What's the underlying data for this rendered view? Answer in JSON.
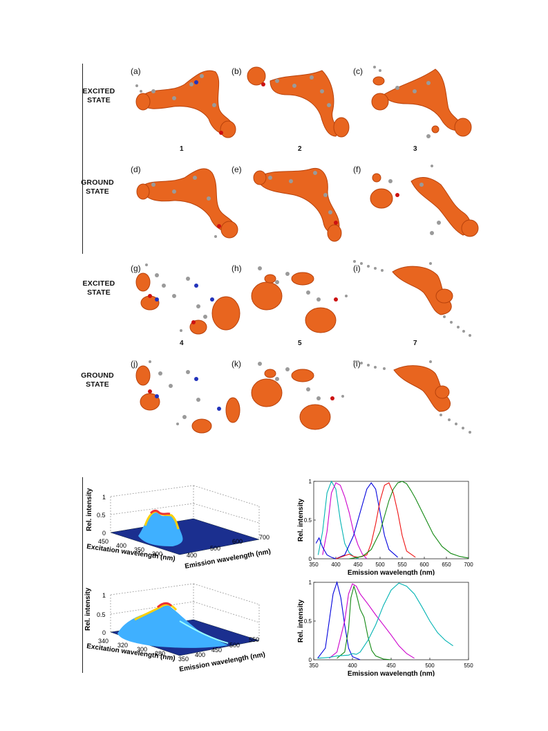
{
  "states": {
    "excited": "EXCITED STATE",
    "excited_l1": "EXCITED",
    "excited_l2": "STATE",
    "ground_l1": "GROUND",
    "ground_l2": "STATE"
  },
  "panel_letters": [
    "(a)",
    "(b)",
    "(c)",
    "(d)",
    "(e)",
    "(f)",
    "(g)",
    "(h)",
    "(i)",
    "(j)",
    "(k)",
    "(l)"
  ],
  "compound_numbers_top": [
    "1",
    "2",
    "3"
  ],
  "compound_numbers_bottom": [
    "4",
    "5",
    "7"
  ],
  "colors": {
    "isosurface": "#e8651f",
    "atom": "#9a9a9a",
    "nitrogen": "#2233bb",
    "oxygen": "#cc1111"
  },
  "plots3d": [
    {
      "zlabel": "Rel. intensity",
      "zticks": [
        "0",
        "0.5",
        "1"
      ],
      "excitation_label": "Excitation wavelength (nm)",
      "excitation_ticks": [
        "450",
        "400",
        "350",
        "300"
      ],
      "emission_label": "Emission wavelength (nm)",
      "emission_ticks": [
        "400",
        "500",
        "600",
        "700"
      ]
    },
    {
      "zlabel": "Rel. intensity",
      "zticks": [
        "0",
        "0.5",
        "1"
      ],
      "excitation_label": "Excitation wavelength (nm)",
      "excitation_ticks": [
        "340",
        "320",
        "300",
        "280"
      ],
      "emission_label": "Emission wavelength (nm)",
      "emission_ticks": [
        "350",
        "400",
        "450",
        "500",
        "550"
      ]
    }
  ],
  "chart_data": [
    {
      "type": "line",
      "xlabel": "Emission wavelength (nm)",
      "ylabel": "Rel. intensity",
      "xlim": [
        350,
        700
      ],
      "ylim": [
        0,
        1
      ],
      "xticks": [
        350,
        400,
        450,
        500,
        550,
        600,
        650,
        700
      ],
      "yticks": [
        0,
        0.5,
        1
      ],
      "series": [
        {
          "color": "#00b3b3",
          "x": [
            360,
            370,
            380,
            390,
            400,
            410,
            420,
            430,
            440,
            450
          ],
          "y": [
            0.05,
            0.35,
            0.85,
            1.0,
            0.9,
            0.5,
            0.2,
            0.08,
            0.03,
            0.0
          ]
        },
        {
          "color": "#cc00cc",
          "x": [
            370,
            380,
            390,
            400,
            410,
            420,
            430,
            440,
            450,
            460,
            470
          ],
          "y": [
            0.05,
            0.35,
            0.85,
            0.98,
            0.95,
            0.8,
            0.6,
            0.35,
            0.18,
            0.06,
            0.0
          ]
        },
        {
          "color": "#0000dd",
          "x": [
            355,
            362,
            370,
            380,
            390,
            400,
            420,
            440,
            460,
            470,
            480,
            490,
            500,
            510,
            520,
            540
          ],
          "y": [
            0.2,
            0.27,
            0.15,
            0.05,
            0.02,
            0.0,
            0.05,
            0.3,
            0.7,
            0.9,
            0.98,
            0.9,
            0.6,
            0.3,
            0.12,
            0.02
          ]
        },
        {
          "color": "#ee1111",
          "x": [
            400,
            410,
            420,
            430,
            440,
            450,
            470,
            480,
            490,
            500,
            510,
            520,
            530,
            540,
            550,
            560,
            580
          ],
          "y": [
            0.0,
            0.02,
            0.04,
            0.06,
            0.03,
            0.02,
            0.05,
            0.2,
            0.45,
            0.75,
            0.95,
            0.98,
            0.85,
            0.6,
            0.3,
            0.1,
            0.02
          ]
        },
        {
          "color": "#118811",
          "x": [
            430,
            460,
            480,
            500,
            510,
            520,
            530,
            540,
            550,
            560,
            570,
            580,
            600,
            620,
            640,
            660,
            680,
            700
          ],
          "y": [
            0.0,
            0.03,
            0.12,
            0.35,
            0.55,
            0.75,
            0.9,
            0.98,
            1.0,
            0.97,
            0.88,
            0.78,
            0.55,
            0.32,
            0.16,
            0.07,
            0.03,
            0.01
          ]
        }
      ]
    },
    {
      "type": "line",
      "xlabel": "Emission wavelength (nm)",
      "ylabel": "Rel. intensity",
      "xlim": [
        350,
        550
      ],
      "ylim": [
        0,
        1
      ],
      "xticks": [
        350,
        400,
        450,
        500,
        550
      ],
      "yticks": [
        0,
        0.5,
        1
      ],
      "series": [
        {
          "color": "#0000dd",
          "x": [
            355,
            365,
            370,
            375,
            380,
            385,
            390,
            395,
            400,
            410
          ],
          "y": [
            0.02,
            0.15,
            0.5,
            0.85,
            1.0,
            0.8,
            0.45,
            0.15,
            0.04,
            0.0
          ]
        },
        {
          "color": "#118811",
          "x": [
            380,
            390,
            395,
            398,
            402,
            405,
            410,
            415,
            420,
            425,
            430,
            440,
            450
          ],
          "y": [
            0.02,
            0.1,
            0.4,
            0.8,
            0.95,
            0.85,
            0.65,
            0.55,
            0.3,
            0.12,
            0.05,
            0.01,
            0.0
          ]
        },
        {
          "color": "#cc00cc",
          "x": [
            370,
            380,
            390,
            395,
            400,
            405,
            410,
            420,
            430,
            440,
            450,
            460,
            470,
            480
          ],
          "y": [
            0.02,
            0.1,
            0.5,
            0.85,
            0.98,
            0.95,
            0.85,
            0.72,
            0.58,
            0.45,
            0.32,
            0.18,
            0.08,
            0.02
          ]
        },
        {
          "color": "#00b3b3",
          "x": [
            355,
            370,
            380,
            395,
            400,
            405,
            410,
            420,
            430,
            440,
            450,
            460,
            470,
            480,
            490,
            500,
            510,
            520,
            530
          ],
          "y": [
            0.02,
            0.03,
            0.05,
            0.06,
            0.08,
            0.07,
            0.1,
            0.25,
            0.45,
            0.7,
            0.9,
            0.99,
            0.95,
            0.85,
            0.68,
            0.5,
            0.35,
            0.25,
            0.18
          ]
        }
      ]
    }
  ]
}
